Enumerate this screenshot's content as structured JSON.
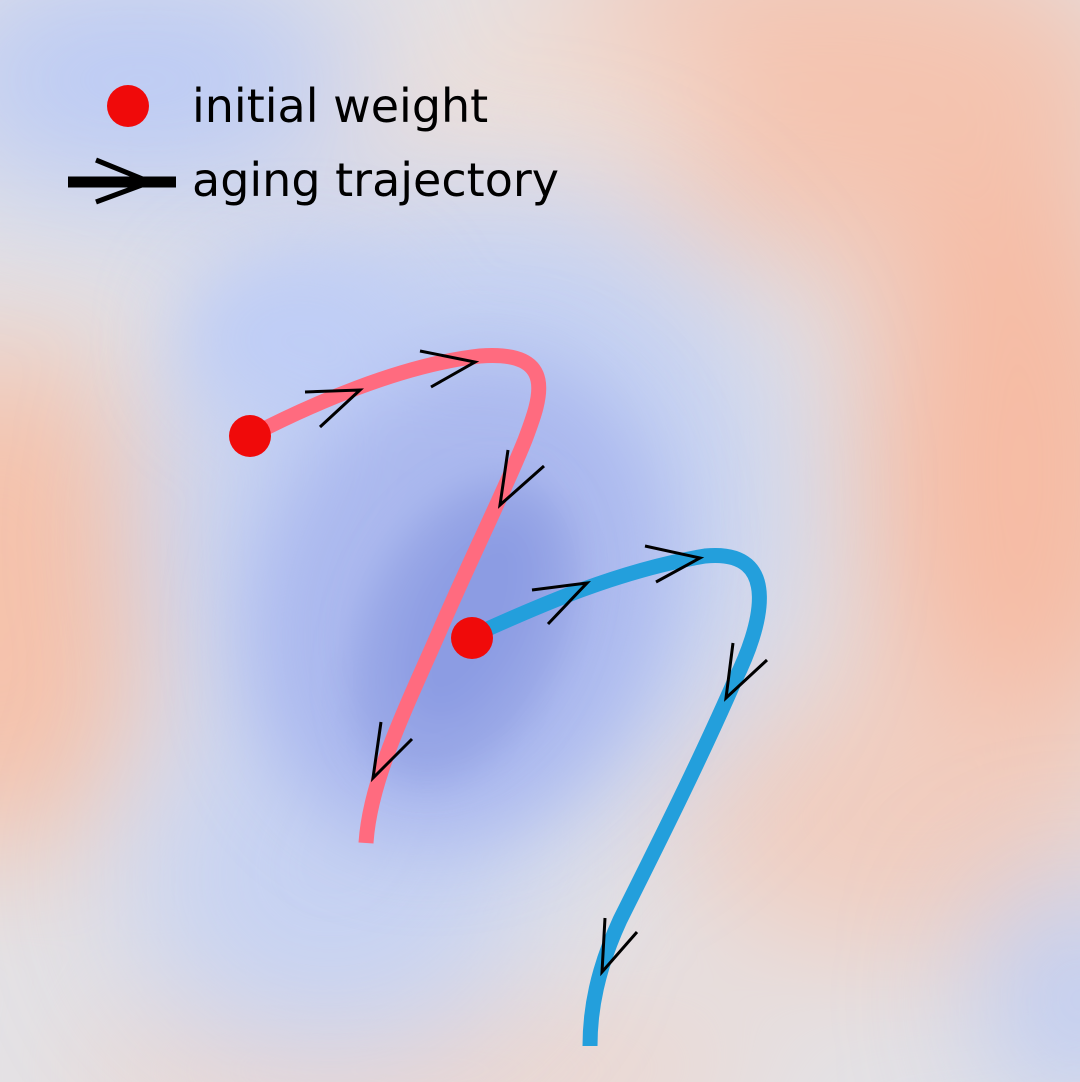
{
  "legend": {
    "initial_weight_label": "initial weight",
    "aging_trajectory_label": "aging trajectory"
  },
  "colors": {
    "initial_weight_dot": "#f00a0a",
    "trajectory_1": "#ff6b7f",
    "trajectory_2": "#239fdc",
    "arrow": "#000000",
    "landscape_low": "#8e9fe6",
    "landscape_mid": "#dfe3ea",
    "landscape_high": "#f6bea8"
  }
}
